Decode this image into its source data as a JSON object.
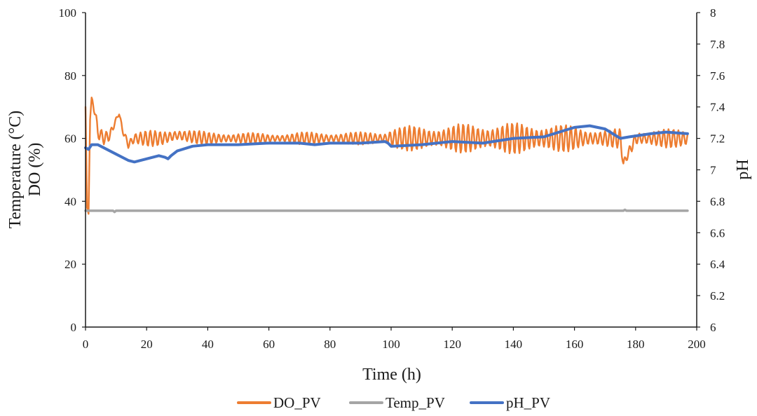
{
  "chart_data": {
    "type": "line",
    "xlabel": "Time (h)",
    "ylabel_left_lines": [
      "Temperature (°C)",
      "DO (%)"
    ],
    "ylabel_right": "pH",
    "xlim": [
      0,
      200
    ],
    "ylim_left": [
      0,
      100
    ],
    "ylim_right": [
      6,
      8
    ],
    "x_ticks": [
      "0",
      "20",
      "40",
      "60",
      "80",
      "100",
      "120",
      "140",
      "160",
      "180",
      "200"
    ],
    "y_left_ticks": [
      "0",
      "20",
      "40",
      "60",
      "80",
      "100"
    ],
    "y_right_ticks": [
      "6",
      "6.2",
      "6.4",
      "6.6",
      "6.8",
      "7",
      "7.2",
      "7.4",
      "7.6",
      "7.8",
      "8"
    ],
    "grid": false,
    "legend_position": "bottom",
    "series": [
      {
        "name": "DO_PV",
        "axis": "left",
        "color": "#ED7D31",
        "style": "oscillating",
        "x": [
          0,
          0.5,
          1,
          1.5,
          2,
          3,
          4,
          6,
          8,
          10,
          11,
          12,
          14,
          16,
          20,
          25,
          30,
          40,
          50,
          60,
          70,
          80,
          90,
          98,
          100,
          110,
          120,
          130,
          140,
          150,
          160,
          170,
          175,
          176,
          180,
          190,
          197
        ],
        "values": [
          70,
          38,
          36,
          66,
          73,
          69,
          62,
          60,
          61,
          66,
          68,
          63,
          58,
          60,
          60,
          60,
          61,
          60,
          60,
          60,
          60,
          60,
          60,
          60,
          60,
          60,
          60,
          60,
          60,
          60,
          60,
          60,
          60,
          52,
          60,
          60,
          60
        ],
        "amplitude": [
          0,
          0,
          0,
          0,
          0,
          2,
          2,
          2,
          2,
          1,
          1,
          2,
          2,
          2,
          2.5,
          2.5,
          2.5,
          2,
          2,
          1.5,
          2,
          2,
          2,
          2.5,
          4,
          4,
          4.5,
          5,
          5,
          5,
          4,
          3,
          3,
          1,
          3,
          3,
          3
        ]
      },
      {
        "name": "Temp_PV",
        "axis": "left",
        "color": "#A5A5A5",
        "x": [
          0,
          9,
          9.5,
          10,
          176,
          176.5,
          177,
          197
        ],
        "values": [
          37,
          37,
          36.6,
          37,
          37,
          37.3,
          37,
          37
        ]
      },
      {
        "name": "pH_PV",
        "axis": "right",
        "color": "#4472C4",
        "x": [
          0,
          1,
          2,
          4,
          6,
          10,
          14,
          16,
          20,
          24,
          26,
          27,
          28,
          30,
          35,
          40,
          50,
          60,
          70,
          75,
          80,
          90,
          98,
          99,
          100,
          110,
          120,
          130,
          140,
          150,
          155,
          160,
          165,
          170,
          175,
          178,
          185,
          190,
          197
        ],
        "values": [
          7.14,
          7.13,
          7.16,
          7.16,
          7.14,
          7.1,
          7.06,
          7.05,
          7.07,
          7.09,
          7.08,
          7.07,
          7.09,
          7.12,
          7.15,
          7.16,
          7.16,
          7.17,
          7.17,
          7.16,
          7.17,
          7.17,
          7.18,
          7.17,
          7.15,
          7.16,
          7.18,
          7.17,
          7.2,
          7.21,
          7.24,
          7.27,
          7.28,
          7.26,
          7.2,
          7.21,
          7.23,
          7.24,
          7.23
        ]
      }
    ]
  }
}
